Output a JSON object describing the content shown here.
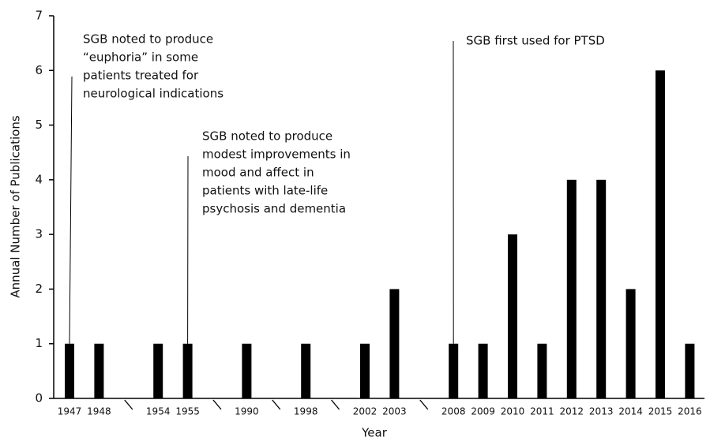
{
  "chart_data": {
    "type": "bar",
    "categories": [
      "1947",
      "1948",
      "1954",
      "1955",
      "1990",
      "1998",
      "2002",
      "2003",
      "2008",
      "2009",
      "2010",
      "2011",
      "2012",
      "2013",
      "2014",
      "2015",
      "2016"
    ],
    "values": [
      1,
      1,
      1,
      1,
      1,
      1,
      1,
      2,
      1,
      1,
      3,
      1,
      4,
      4,
      2,
      6,
      1
    ],
    "color": "#000000",
    "ylim": [
      0,
      7
    ],
    "yticks": [
      0,
      1,
      2,
      3,
      4,
      5,
      6,
      7
    ],
    "x_label": "Year",
    "y_label": "Annual Number of Publications",
    "annotations": [
      {
        "lines": [
          "SGB noted to produce",
          "“euphoria” in some",
          "patients treated for",
          "neurological indications"
        ]
      },
      {
        "lines": [
          "SGB noted to produce",
          "modest improvements in",
          "mood and affect in",
          "patients with late-life",
          "psychosis and dementia"
        ]
      },
      {
        "lines": [
          "SGB first used for PTSD"
        ]
      }
    ]
  }
}
